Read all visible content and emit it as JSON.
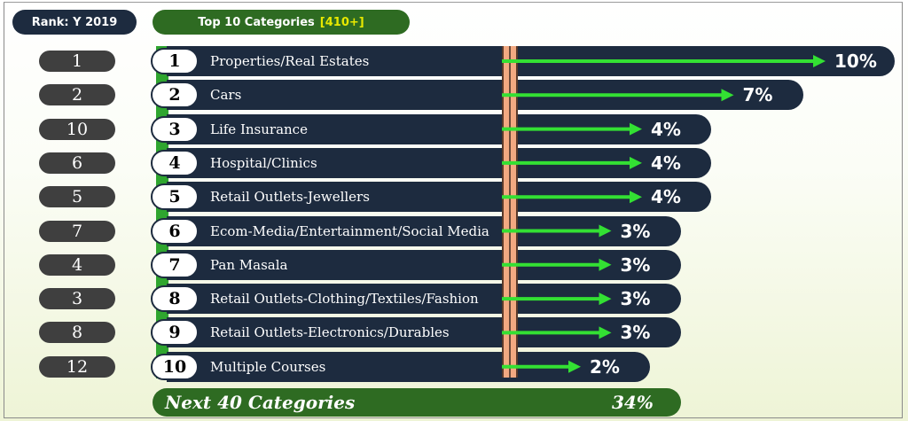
{
  "rank_header": "Rank: Y 2019",
  "top_header": {
    "label": "Top 10 Categories",
    "count": "[410+]"
  },
  "colors": {
    "bar": "#1d2b3f",
    "arrow": "#33e033",
    "accent_green": "#2e6b22",
    "divider": "#f2a981"
  },
  "chart_data": {
    "type": "bar",
    "categories": [
      "Properties/Real Estates",
      "Cars",
      "Life Insurance",
      "Hospital/Clinics",
      "Retail Outlets-Jewellers",
      "Ecom-Media/Entertainment/Social Media",
      "Pan Masala",
      "Retail Outlets-Clothing/Textiles/Fashion",
      "Retail Outlets-Electronics/Durables",
      "Multiple Courses"
    ],
    "positions": [
      "1",
      "2",
      "3",
      "4",
      "5",
      "6",
      "7",
      "8",
      "9",
      "10"
    ],
    "rank_2019": [
      "1",
      "2",
      "10",
      "6",
      "5",
      "7",
      "4",
      "3",
      "8",
      "12"
    ],
    "values": [
      10,
      7,
      4,
      4,
      4,
      3,
      3,
      3,
      3,
      2
    ],
    "value_labels": [
      "10%",
      "7%",
      "4%",
      "4%",
      "4%",
      "3%",
      "3%",
      "3%",
      "3%",
      "2%"
    ],
    "rest": {
      "label": "Next 40 Categories",
      "value": 34,
      "value_label": "34%"
    }
  }
}
